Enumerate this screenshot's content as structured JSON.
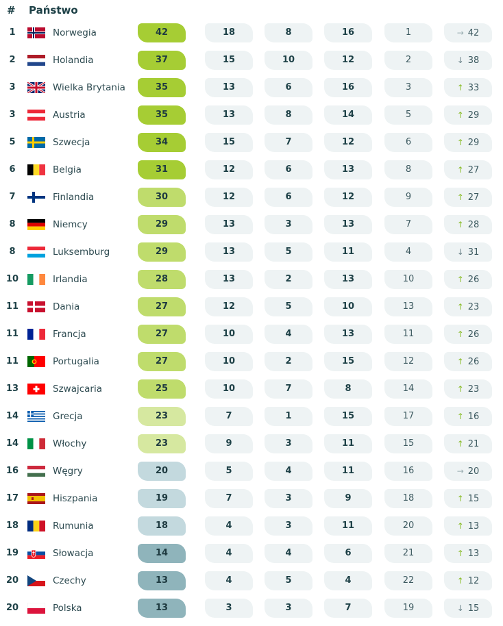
{
  "header": {
    "rank": "#",
    "country": "Państwo"
  },
  "colors": {
    "top": "#a6cd34",
    "high": "#bfdc6c",
    "mid": "#d6e8a0",
    "low": "#c3d9de",
    "lowest": "#8fb4bb",
    "arrow_up": "#8cbd2e",
    "arrow_down": "#6b8389"
  },
  "rows": [
    {
      "rank": "1",
      "country": "Norwegia",
      "flag": "norway-flag",
      "score": "42",
      "tier": "top",
      "c1": "18",
      "c2": "8",
      "c3": "16",
      "prev": "1",
      "trend": "same",
      "last": "42"
    },
    {
      "rank": "2",
      "country": "Holandia",
      "flag": "netherlands-flag",
      "score": "37",
      "tier": "top",
      "c1": "15",
      "c2": "10",
      "c3": "12",
      "prev": "2",
      "trend": "down",
      "last": "38"
    },
    {
      "rank": "3",
      "country": "Wielka Brytania",
      "flag": "uk-flag",
      "score": "35",
      "tier": "top",
      "c1": "13",
      "c2": "6",
      "c3": "16",
      "prev": "3",
      "trend": "up",
      "last": "33"
    },
    {
      "rank": "3",
      "country": "Austria",
      "flag": "austria-flag",
      "score": "35",
      "tier": "top",
      "c1": "13",
      "c2": "8",
      "c3": "14",
      "prev": "5",
      "trend": "up",
      "last": "29"
    },
    {
      "rank": "5",
      "country": "Szwecja",
      "flag": "sweden-flag",
      "score": "34",
      "tier": "top",
      "c1": "15",
      "c2": "7",
      "c3": "12",
      "prev": "6",
      "trend": "up",
      "last": "29"
    },
    {
      "rank": "6",
      "country": "Belgia",
      "flag": "belgium-flag",
      "score": "31",
      "tier": "top",
      "c1": "12",
      "c2": "6",
      "c3": "13",
      "prev": "8",
      "trend": "up",
      "last": "27"
    },
    {
      "rank": "7",
      "country": "Finlandia",
      "flag": "finland-flag",
      "score": "30",
      "tier": "high",
      "c1": "12",
      "c2": "6",
      "c3": "12",
      "prev": "9",
      "trend": "up",
      "last": "27"
    },
    {
      "rank": "8",
      "country": "Niemcy",
      "flag": "germany-flag",
      "score": "29",
      "tier": "high",
      "c1": "13",
      "c2": "3",
      "c3": "13",
      "prev": "7",
      "trend": "up",
      "last": "28"
    },
    {
      "rank": "8",
      "country": "Luksemburg",
      "flag": "luxembourg-flag",
      "score": "29",
      "tier": "high",
      "c1": "13",
      "c2": "5",
      "c3": "11",
      "prev": "4",
      "trend": "down",
      "last": "31"
    },
    {
      "rank": "10",
      "country": "Irlandia",
      "flag": "ireland-flag",
      "score": "28",
      "tier": "high",
      "c1": "13",
      "c2": "2",
      "c3": "13",
      "prev": "10",
      "trend": "up",
      "last": "26"
    },
    {
      "rank": "11",
      "country": "Dania",
      "flag": "denmark-flag",
      "score": "27",
      "tier": "high",
      "c1": "12",
      "c2": "5",
      "c3": "10",
      "prev": "13",
      "trend": "up",
      "last": "23"
    },
    {
      "rank": "11",
      "country": "Francja",
      "flag": "france-flag",
      "score": "27",
      "tier": "high",
      "c1": "10",
      "c2": "4",
      "c3": "13",
      "prev": "11",
      "trend": "up",
      "last": "26"
    },
    {
      "rank": "11",
      "country": "Portugalia",
      "flag": "portugal-flag",
      "score": "27",
      "tier": "high",
      "c1": "10",
      "c2": "2",
      "c3": "15",
      "prev": "12",
      "trend": "up",
      "last": "26"
    },
    {
      "rank": "13",
      "country": "Szwajcaria",
      "flag": "switzerland-flag",
      "score": "25",
      "tier": "high",
      "c1": "10",
      "c2": "7",
      "c3": "8",
      "prev": "14",
      "trend": "up",
      "last": "23"
    },
    {
      "rank": "14",
      "country": "Grecja",
      "flag": "greece-flag",
      "score": "23",
      "tier": "mid",
      "c1": "7",
      "c2": "1",
      "c3": "15",
      "prev": "17",
      "trend": "up",
      "last": "16"
    },
    {
      "rank": "14",
      "country": "Włochy",
      "flag": "italy-flag",
      "score": "23",
      "tier": "mid",
      "c1": "9",
      "c2": "3",
      "c3": "11",
      "prev": "15",
      "trend": "up",
      "last": "21"
    },
    {
      "rank": "16",
      "country": "Węgry",
      "flag": "hungary-flag",
      "score": "20",
      "tier": "low",
      "c1": "5",
      "c2": "4",
      "c3": "11",
      "prev": "16",
      "trend": "same",
      "last": "20"
    },
    {
      "rank": "17",
      "country": "Hiszpania",
      "flag": "spain-flag",
      "score": "19",
      "tier": "low",
      "c1": "7",
      "c2": "3",
      "c3": "9",
      "prev": "18",
      "trend": "up",
      "last": "15"
    },
    {
      "rank": "18",
      "country": "Rumunia",
      "flag": "romania-flag",
      "score": "18",
      "tier": "low",
      "c1": "4",
      "c2": "3",
      "c3": "11",
      "prev": "20",
      "trend": "up",
      "last": "13"
    },
    {
      "rank": "19",
      "country": "Słowacja",
      "flag": "slovakia-flag",
      "score": "14",
      "tier": "lowest",
      "c1": "4",
      "c2": "4",
      "c3": "6",
      "prev": "21",
      "trend": "up",
      "last": "13"
    },
    {
      "rank": "20",
      "country": "Czechy",
      "flag": "czechia-flag",
      "score": "13",
      "tier": "lowest",
      "c1": "4",
      "c2": "5",
      "c3": "4",
      "prev": "22",
      "trend": "up",
      "last": "12"
    },
    {
      "rank": "20",
      "country": "Polska",
      "flag": "poland-flag",
      "score": "13",
      "tier": "lowest",
      "c1": "3",
      "c2": "3",
      "c3": "7",
      "prev": "19",
      "trend": "down",
      "last": "15"
    }
  ]
}
